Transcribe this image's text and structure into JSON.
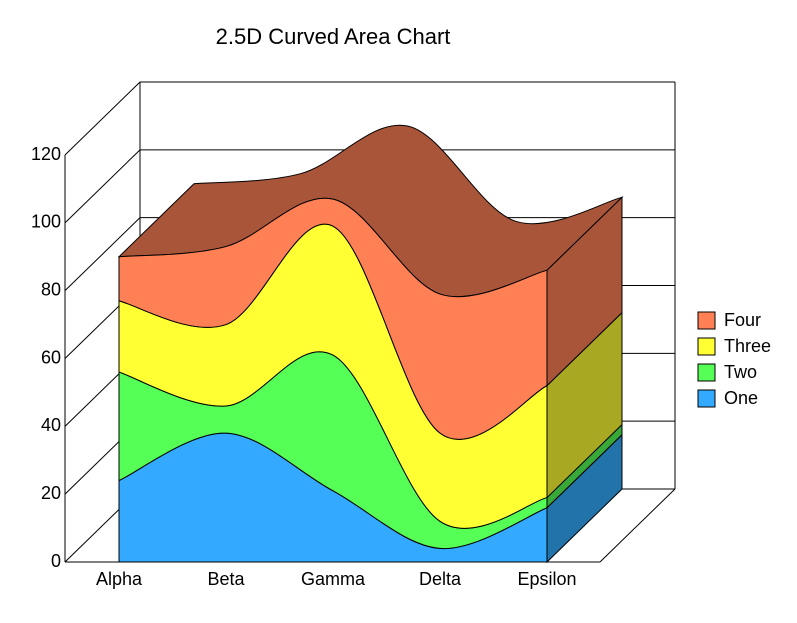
{
  "chart_data": {
    "type": "area3d",
    "title": "2.5D Curved Area Chart",
    "categories": [
      "Alpha",
      "Beta",
      "Gamma",
      "Delta",
      "Epsilon"
    ],
    "series": [
      {
        "name": "One",
        "color": "#33aaff",
        "side_color": "#2273aa",
        "values": [
          24,
          38,
          21,
          4,
          16
        ]
      },
      {
        "name": "Two",
        "color": "#55ff55",
        "side_color": "#38a838",
        "values": [
          32,
          8,
          40,
          8,
          3
        ]
      },
      {
        "name": "Three",
        "color": "#ffff33",
        "side_color": "#a8a822",
        "values": [
          21,
          24,
          38,
          26,
          33
        ]
      },
      {
        "name": "Four",
        "color": "#ff8055",
        "side_color": "#a9553a",
        "values": [
          13,
          23,
          8,
          41,
          34
        ]
      }
    ],
    "top_color": "#a9553a",
    "stacked": true,
    "ylim": [
      0,
      120
    ],
    "yticks": [
      0,
      20,
      40,
      60,
      80,
      100,
      120
    ],
    "grid": true,
    "legend": "right"
  }
}
